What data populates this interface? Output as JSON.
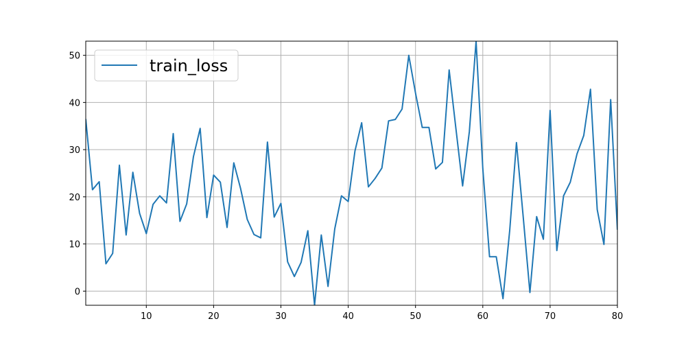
{
  "chart_data": {
    "type": "line",
    "title": "",
    "xlabel": "",
    "ylabel": "",
    "xlim": [
      1,
      80
    ],
    "ylim": [
      -3,
      53
    ],
    "xticks": [
      10,
      20,
      30,
      40,
      50,
      60,
      70,
      80
    ],
    "yticks": [
      0,
      10,
      20,
      30,
      40,
      50
    ],
    "grid": true,
    "legend_position": "top-left",
    "series": [
      {
        "name": "train_loss",
        "color": "#1f77b4",
        "x": [
          1,
          2,
          3,
          4,
          5,
          6,
          7,
          8,
          9,
          10,
          11,
          12,
          13,
          14,
          15,
          16,
          17,
          18,
          19,
          20,
          21,
          22,
          23,
          24,
          25,
          26,
          27,
          28,
          29,
          30,
          31,
          32,
          33,
          34,
          35,
          36,
          37,
          38,
          39,
          40,
          41,
          42,
          43,
          44,
          45,
          46,
          47,
          48,
          49,
          50,
          51,
          52,
          53,
          54,
          55,
          56,
          57,
          58,
          59,
          60,
          61,
          62,
          63,
          64,
          65,
          66,
          67,
          68,
          69,
          70,
          71,
          72,
          73,
          74,
          75,
          76,
          77,
          78,
          79,
          80
        ],
        "values": [
          36.5,
          21.5,
          23.2,
          5.8,
          8.0,
          26.7,
          11.9,
          25.2,
          16.5,
          12.2,
          18.4,
          20.2,
          18.7,
          33.4,
          14.8,
          18.5,
          28.5,
          34.5,
          15.6,
          24.6,
          23.1,
          13.5,
          27.2,
          21.8,
          15.2,
          12.0,
          11.3,
          31.6,
          15.7,
          18.6,
          6.2,
          3.1,
          6.1,
          12.8,
          -3.0,
          11.9,
          1.0,
          13.2,
          20.2,
          19.0,
          29.7,
          35.7,
          22.1,
          23.9,
          26.1,
          36.1,
          36.4,
          38.6,
          50.0,
          42.0,
          34.7,
          34.7,
          25.9,
          27.3,
          46.9,
          34.5,
          22.3,
          33.8,
          53.0,
          26.0,
          7.3,
          7.3,
          -1.6,
          12.9,
          31.5,
          15.8,
          -0.3,
          15.8,
          11.0,
          38.3,
          8.6,
          20.2,
          23.1,
          29.1,
          33.0,
          42.8,
          17.3,
          9.9,
          40.6,
          13.0
        ]
      }
    ]
  }
}
